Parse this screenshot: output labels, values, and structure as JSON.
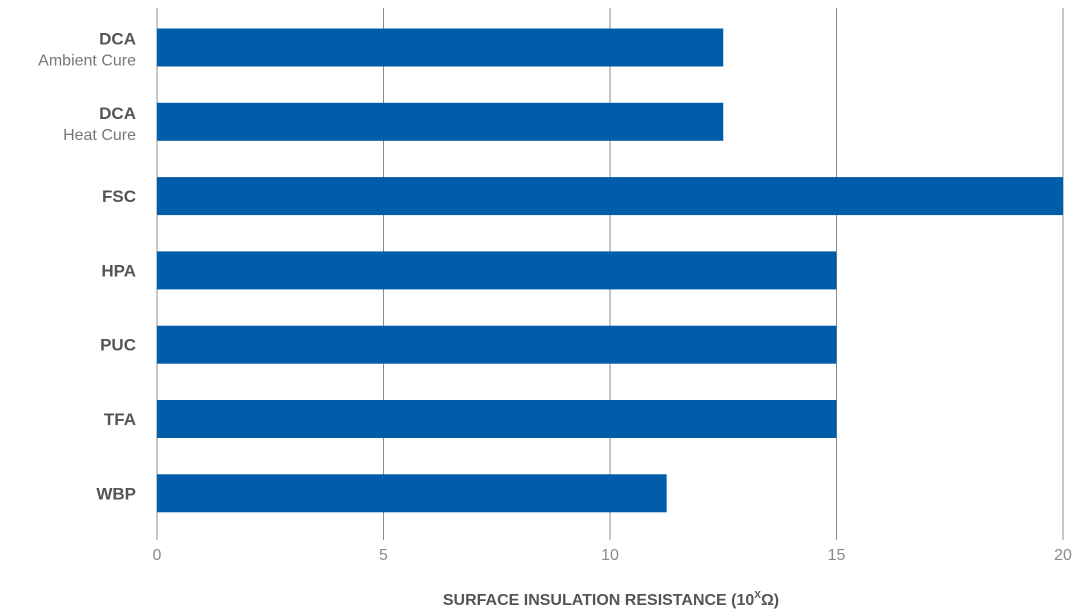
{
  "chart_data": {
    "type": "bar",
    "orientation": "horizontal",
    "categories": [
      {
        "name": "DCA",
        "sub": "Ambient Cure"
      },
      {
        "name": "DCA",
        "sub": "Heat Cure"
      },
      {
        "name": "FSC",
        "sub": ""
      },
      {
        "name": "HPA",
        "sub": ""
      },
      {
        "name": "PUC",
        "sub": ""
      },
      {
        "name": "TFA",
        "sub": ""
      },
      {
        "name": "WBP",
        "sub": ""
      }
    ],
    "values": [
      12.5,
      12.5,
      20,
      15,
      15,
      15,
      11.25
    ],
    "xlim": [
      0,
      20
    ],
    "xticks": [
      "0",
      "5",
      "10",
      "15",
      "20"
    ],
    "xlabel": "SURFACE INSULATION RESISTANCE (10",
    "xlabel_sup": "X",
    "xlabel_end": "Ω)",
    "grid": true,
    "bar_color": "#005daa",
    "grid_color": "#8c8c8c"
  }
}
